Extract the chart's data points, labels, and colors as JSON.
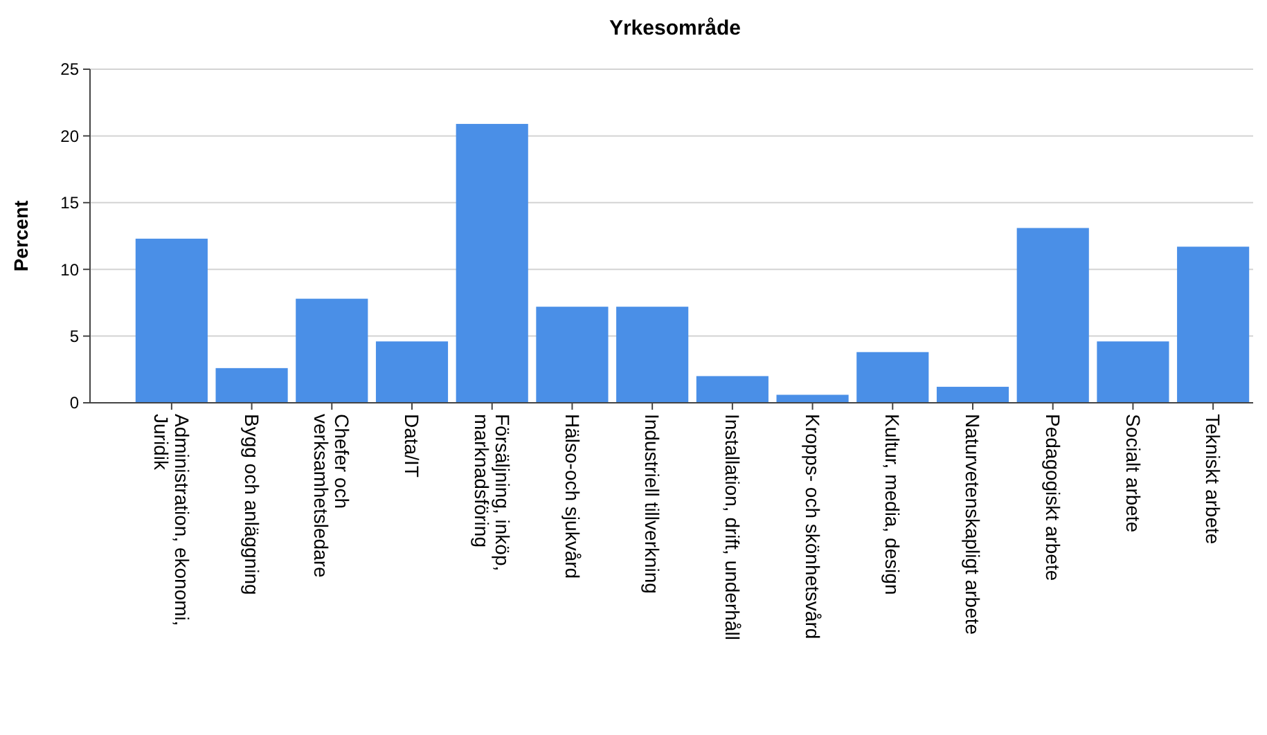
{
  "chart_data": {
    "type": "bar",
    "title": "Yrkesområde",
    "ylabel": "Percent",
    "categories": [
      "Administration, ekonomi,\nJuridik",
      "Bygg och anläggning",
      "Chefer och\nverksamhetsledare",
      "Data/IT",
      "Försäljning, inköp,\nmarknadsföring",
      "Hälso-och sjukvård",
      "Industriell tillverkning",
      "Installation, drift, underhåll",
      "Kropps- och skönhetsvård",
      "Kultur, media, design",
      "Naturvetenskapligt arbete",
      "Pedagogiskt arbete",
      "Socialt arbete",
      "Tekniskt arbete"
    ],
    "values": [
      12.3,
      2.6,
      7.8,
      4.6,
      20.9,
      7.2,
      7.2,
      2.0,
      0.6,
      3.8,
      1.2,
      13.1,
      4.6,
      11.7
    ],
    "color": "#4a8fe7",
    "ylim": [
      0,
      25
    ],
    "yticks": [
      0,
      5,
      10,
      15,
      20,
      25
    ],
    "grid": "y"
  }
}
